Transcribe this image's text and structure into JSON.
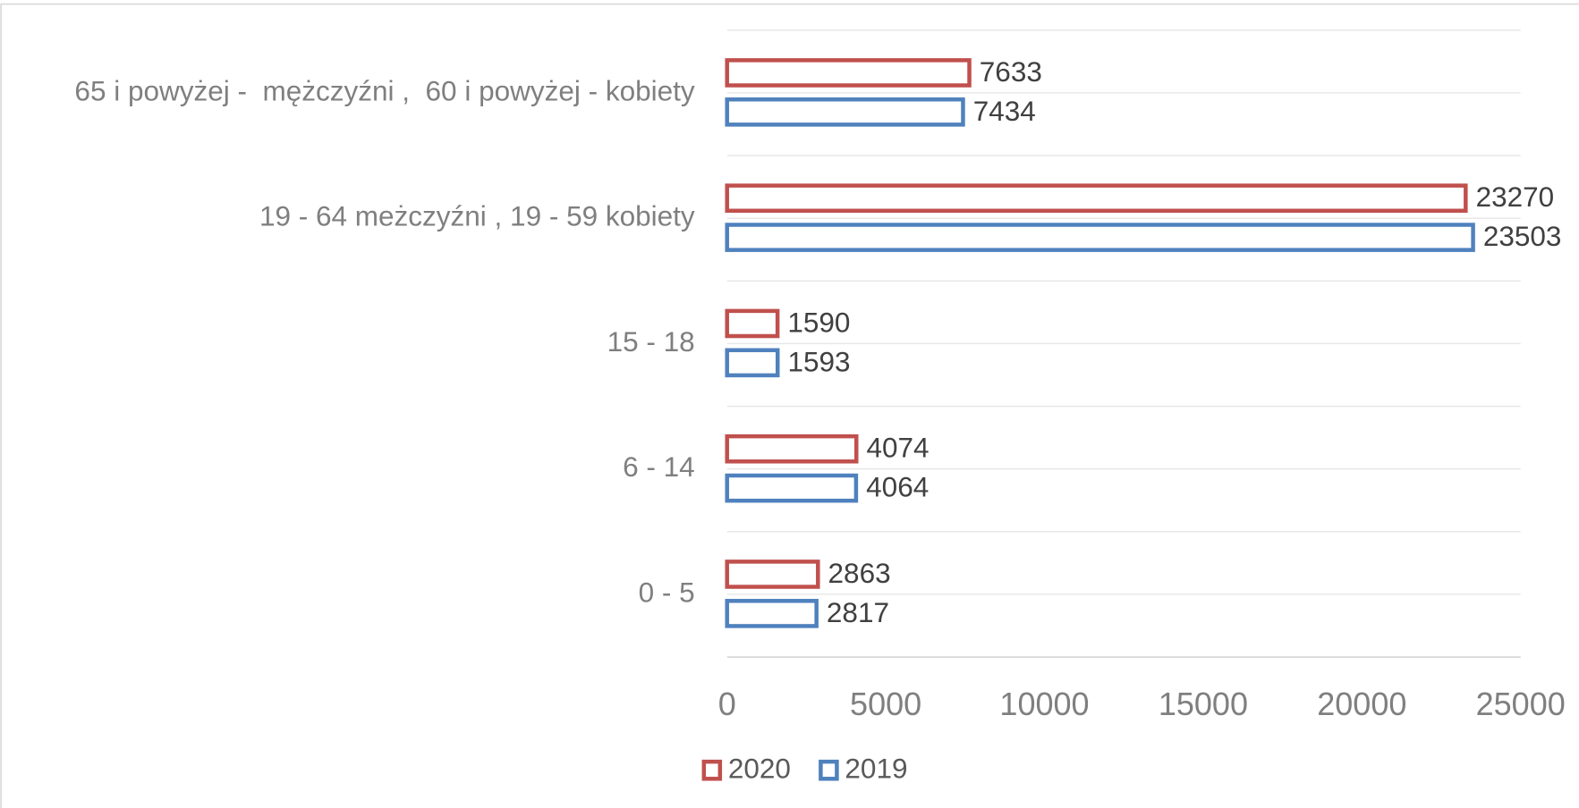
{
  "chart_data": {
    "type": "hbar",
    "categories": [
      "65 i powyżej -  mężczyźni ,  60 i powyżej - kobiety",
      "19 - 64 meżczyźni , 19 - 59 kobiety",
      "15 - 18",
      "6 - 14",
      "0 - 5"
    ],
    "series": [
      {
        "name": "2020",
        "color": "#c0504d",
        "values": [
          7633,
          23270,
          1590,
          4074,
          2863
        ]
      },
      {
        "name": "2019",
        "color": "#4f81bd",
        "values": [
          7434,
          23503,
          1593,
          4064,
          2817
        ]
      }
    ],
    "xlim": [
      0,
      25000
    ],
    "xticks": [
      0,
      5000,
      10000,
      15000,
      20000,
      25000
    ],
    "grid": true,
    "legend": "bottom"
  }
}
